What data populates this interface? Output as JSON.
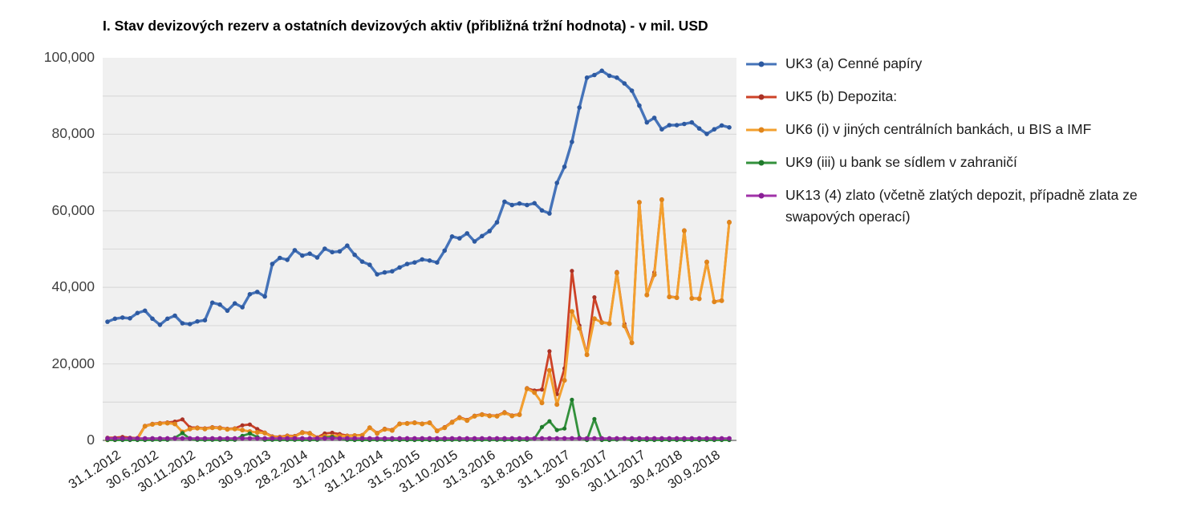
{
  "chart_data": {
    "type": "line",
    "title": "I. Stav devizových rezerv a ostatních devizových aktiv (přibližná tržní hodnota) - v mil. USD",
    "xlabel": "",
    "ylabel": "",
    "ylim": [
      0,
      100000
    ],
    "y_gridline_step": 10000,
    "y_tick_values": [
      0,
      20000,
      40000,
      60000,
      80000,
      100000
    ],
    "y_tick_labels": [
      "0",
      "20,000",
      "40,000",
      "60,000",
      "80,000",
      "100,000"
    ],
    "x_tick_interval": 5,
    "x_tick_labels": [
      "31.1.2012",
      "30.6.2012",
      "30.11.2012",
      "30.4.2013",
      "30.9.2013",
      "28.2.2014",
      "31.7.2014",
      "31.12.2014",
      "31.5.2015",
      "31.10.2015",
      "31.3.2016",
      "31.8.2016",
      "31.1.2017",
      "30.6.2017",
      "30.11.2017",
      "30.4.2018",
      "30.9.2018"
    ],
    "n_points": 84,
    "grid": true,
    "legend_position": "right",
    "plot_bg": "#f0f0f0",
    "gridline_color": "#dcdcdc",
    "axis_line_color": "#9b9b9b",
    "series": [
      {
        "id": "UK3",
        "name": "UK3 (a) Cenné papíry",
        "color": "#4573b9",
        "marker_color": "#2d59a0",
        "line_width": 3.4,
        "marker_radius": 2.8,
        "values": [
          31000,
          31800,
          32100,
          31900,
          33300,
          33900,
          31800,
          30200,
          31800,
          32600,
          30600,
          30400,
          31100,
          31400,
          36000,
          35500,
          33900,
          35800,
          34800,
          38200,
          38800,
          37600,
          46100,
          47700,
          47200,
          49700,
          48300,
          48800,
          47800,
          50100,
          49200,
          49400,
          50900,
          48500,
          46700,
          45900,
          43400,
          43900,
          44200,
          45200,
          46100,
          46500,
          47300,
          47000,
          46500,
          49600,
          53300,
          52800,
          54100,
          52000,
          53400,
          54700,
          57000,
          62400,
          61500,
          61900,
          61500,
          62000,
          60100,
          59300,
          67300,
          71500,
          78000,
          87000,
          94800,
          95500,
          96600,
          95300,
          94800,
          93300,
          91400,
          87500,
          83100,
          84300,
          81300,
          82400,
          82400,
          82700,
          83100,
          81500,
          80100,
          81300,
          82300,
          81800
        ]
      },
      {
        "id": "UK5",
        "name": "UK5 (b) Depozita:",
        "color": "#cd4227",
        "marker_color": "#a93226",
        "line_width": 2.8,
        "marker_radius": 2.6,
        "values": [
          700,
          700,
          900,
          700,
          600,
          3800,
          4350,
          4550,
          4700,
          4900,
          5500,
          3400,
          3350,
          3150,
          3450,
          3350,
          3050,
          3150,
          3950,
          4150,
          2950,
          2050,
          1050,
          950,
          1250,
          1150,
          2150,
          1950,
          800,
          1800,
          2000,
          1650,
          1250,
          1350,
          1400,
          3400,
          1950,
          3050,
          2750,
          4400,
          4500,
          4700,
          4400,
          4700,
          2550,
          3450,
          4850,
          6050,
          5350,
          6450,
          6850,
          6550,
          6450,
          7350,
          6550,
          6850,
          13650,
          13050,
          13300,
          23300,
          12100,
          18800,
          44300,
          30000,
          22500,
          37400,
          30900,
          30600,
          44000,
          30450,
          25600,
          62300,
          38100,
          43900,
          63000,
          37600,
          37400,
          54900,
          37200,
          37100,
          46700,
          36300,
          36600,
          57100
        ]
      },
      {
        "id": "UK6",
        "name": "UK6 (i) v jiných centrálních bankách, u BIS a IMF",
        "color": "#f3a02f",
        "marker_color": "#e0851c",
        "line_width": 3.0,
        "marker_radius": 3.0,
        "values": [
          150,
          200,
          250,
          300,
          350,
          3700,
          4200,
          4400,
          4500,
          4300,
          2200,
          3000,
          3200,
          3000,
          3300,
          3200,
          2900,
          3000,
          2700,
          2300,
          2100,
          1900,
          900,
          800,
          1100,
          1000,
          2000,
          1800,
          650,
          1100,
          1100,
          1200,
          1100,
          1250,
          1300,
          3300,
          1800,
          2900,
          2600,
          4300,
          4400,
          4600,
          4300,
          4600,
          2450,
          3300,
          4700,
          5900,
          5200,
          6300,
          6700,
          6400,
          6300,
          7200,
          6400,
          6700,
          13500,
          12500,
          9800,
          18300,
          9400,
          15700,
          33700,
          29300,
          22400,
          31800,
          30800,
          30500,
          43800,
          29900,
          25500,
          62200,
          38000,
          43300,
          62900,
          37500,
          37300,
          54800,
          37100,
          37000,
          46600,
          36200,
          36500,
          57000
        ]
      },
      {
        "id": "UK9",
        "name": "UK9 (iii) u bank se sídlem v zahraničí",
        "color": "#33913c",
        "marker_color": "#1f7a2c",
        "line_width": 2.8,
        "marker_radius": 2.6,
        "values": [
          100,
          100,
          100,
          100,
          100,
          100,
          150,
          150,
          150,
          700,
          1900,
          400,
          150,
          150,
          150,
          150,
          150,
          150,
          1200,
          1800,
          850,
          150,
          150,
          150,
          150,
          150,
          150,
          150,
          150,
          700,
          900,
          450,
          150,
          100,
          100,
          100,
          150,
          150,
          150,
          100,
          100,
          100,
          100,
          100,
          100,
          150,
          150,
          150,
          150,
          150,
          150,
          150,
          150,
          150,
          150,
          150,
          150,
          500,
          3500,
          5000,
          2700,
          3100,
          10600,
          700,
          100,
          5600,
          100,
          100,
          200,
          550,
          100,
          100,
          100,
          100,
          100,
          100,
          100,
          100,
          100,
          100,
          100,
          100,
          100,
          100
        ]
      },
      {
        "id": "UK13",
        "name": "UK13 (4) zlato (včetně zlatých depozit, případně zlata ze swapových operací)",
        "color": "#a133a8",
        "marker_color": "#891f96",
        "line_width": 2.8,
        "marker_radius": 2.9,
        "values": [
          520,
          520,
          520,
          520,
          520,
          520,
          520,
          520,
          520,
          520,
          520,
          520,
          520,
          520,
          520,
          520,
          520,
          520,
          520,
          520,
          520,
          520,
          520,
          520,
          520,
          520,
          520,
          520,
          520,
          520,
          520,
          520,
          520,
          520,
          520,
          520,
          520,
          520,
          520,
          520,
          520,
          520,
          520,
          520,
          520,
          520,
          520,
          520,
          520,
          520,
          520,
          520,
          520,
          520,
          520,
          520,
          520,
          520,
          520,
          520,
          520,
          520,
          520,
          520,
          520,
          520,
          520,
          520,
          520,
          520,
          520,
          520,
          520,
          520,
          520,
          520,
          520,
          520,
          520,
          520,
          520,
          520,
          520,
          520
        ]
      }
    ]
  }
}
